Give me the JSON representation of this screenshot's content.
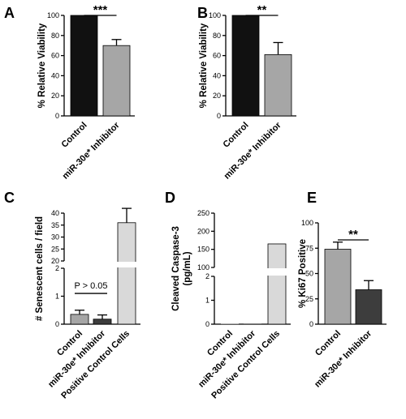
{
  "chart_data": [
    {
      "panel": "A",
      "type": "bar",
      "ylabel": "% Relative Viability",
      "categories": [
        "Control",
        "miR-30e* Inhibitor"
      ],
      "values": [
        100,
        70
      ],
      "errors": [
        0,
        6
      ],
      "colors": [
        "#111111",
        "#a6a6a6"
      ],
      "ylim": [
        0,
        100
      ],
      "yticks": [
        "0",
        "20",
        "40",
        "60",
        "80",
        "100"
      ],
      "significance": "***"
    },
    {
      "panel": "B",
      "type": "bar",
      "ylabel": "% Relative Viability",
      "categories": [
        "Control",
        "miR-30e* Inhibitor"
      ],
      "values": [
        100,
        61
      ],
      "errors": [
        0,
        12
      ],
      "colors": [
        "#111111",
        "#a6a6a6"
      ],
      "ylim": [
        0,
        100
      ],
      "yticks": [
        "0",
        "20",
        "40",
        "60",
        "80",
        "100"
      ],
      "significance": "**"
    },
    {
      "panel": "C",
      "type": "bar",
      "ylabel": "# Senescent cells / field",
      "categories": [
        "Control",
        "miR-30e* Inhibitor",
        "Positive Control Cells"
      ],
      "values": [
        0.35,
        0.18,
        36
      ],
      "errors": [
        0.15,
        0.15,
        6
      ],
      "colors": [
        "#a6a6a6",
        "#3d3d3d",
        "#d9d9d9"
      ],
      "broken_axis": {
        "lower": [
          0,
          2
        ],
        "upper": [
          20,
          40
        ]
      },
      "yticks_lower": [
        "0",
        "1",
        "2"
      ],
      "yticks_upper": [
        "20",
        "25",
        "30",
        "35",
        "40"
      ],
      "annotation": "P > 0.05"
    },
    {
      "panel": "D",
      "type": "bar",
      "ylabel": "Cleaved Caspase-3 (pg/mL)",
      "ylabel_lines": [
        "Cleaved Caspase-3",
        "(pg/mL)"
      ],
      "categories": [
        "Control",
        "miR-30e* Inhibitor",
        "Positive Control Cells"
      ],
      "values": [
        0,
        0,
        165
      ],
      "colors": [
        "#a6a6a6",
        "#3d3d3d",
        "#d9d9d9"
      ],
      "broken_axis": {
        "lower": [
          0,
          2
        ],
        "upper": [
          100,
          250
        ]
      },
      "yticks_lower": [
        "0",
        "1",
        "2"
      ],
      "yticks_upper": [
        "100",
        "150",
        "200",
        "250"
      ]
    },
    {
      "panel": "E",
      "type": "bar",
      "ylabel": "% Ki67 Positive",
      "categories": [
        "Control",
        "miR-30e* Inhibitor"
      ],
      "values": [
        74,
        34
      ],
      "errors": [
        7,
        9
      ],
      "colors": [
        "#a6a6a6",
        "#3d3d3d"
      ],
      "ylim": [
        0,
        100
      ],
      "yticks": [
        "0",
        "25",
        "50",
        "75",
        "100"
      ],
      "significance": "**"
    }
  ]
}
